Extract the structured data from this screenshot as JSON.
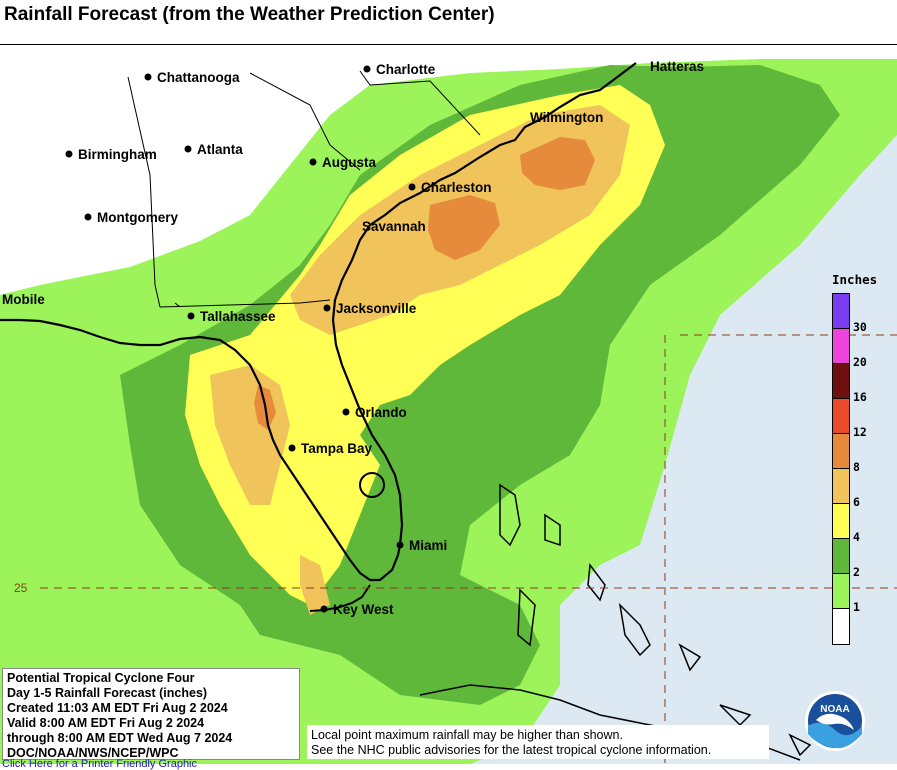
{
  "page": {
    "title": "Rainfall Forecast (from the Weather Prediction Center)"
  },
  "map": {
    "cities": [
      {
        "name": "Chattanooga"
      },
      {
        "name": "Charlotte"
      },
      {
        "name": "Hatteras"
      },
      {
        "name": "Birmingham"
      },
      {
        "name": "Atlanta"
      },
      {
        "name": "Augusta"
      },
      {
        "name": "Wilmington"
      },
      {
        "name": "Charleston"
      },
      {
        "name": "Montgomery"
      },
      {
        "name": "Savannah"
      },
      {
        "name": "Mobile"
      },
      {
        "name": "Tallahassee"
      },
      {
        "name": "Jacksonville"
      },
      {
        "name": "Orlando"
      },
      {
        "name": "Tampa Bay"
      },
      {
        "name": "Miami"
      },
      {
        "name": "Key West"
      }
    ],
    "latitude_label": "25",
    "colors": {
      "ocean": "#dce8f2",
      "land": "#ffffff",
      "band_1": "#9cf45a",
      "band_2": "#5fb83a",
      "band_4": "#ffff55",
      "band_6": "#f0c45a",
      "band_8": "#e68a3c",
      "band_12": "#e84a2a",
      "band_16": "#6e1010",
      "band_20": "#ee44dd",
      "band_30": "#8844ee",
      "coast": "#000000",
      "border": "#000000"
    }
  },
  "legend": {
    "title": "Inches",
    "ticks": [
      "30",
      "20",
      "16",
      "12",
      "8",
      "6",
      "4",
      "2",
      "1"
    ],
    "swatch_colors": [
      "#7a3cf0",
      "#ee44dd",
      "#6e1010",
      "#e84a2a",
      "#e68a3c",
      "#f0c45a",
      "#ffff55",
      "#5fb83a",
      "#9cf45a",
      "#ffffff"
    ]
  },
  "info": {
    "lines": [
      "Potential Tropical Cyclone Four",
      "Day 1-5 Rainfall Forecast (inches)",
      "Created 11:03 AM EDT Fri Aug 2 2024",
      "Valid 8:00 AM EDT Fri Aug 2 2024",
      "through 8:00 AM EDT Wed Aug 7 2024",
      "DOC/NOAA/NWS/NCEP/WPC"
    ]
  },
  "note": {
    "lines": [
      "Local point maximum rainfall may be higher than shown.",
      "See the NHC public advisories for the latest tropical cyclone information."
    ]
  },
  "logo": {
    "text": "NOAA"
  },
  "link": {
    "text": "Click Here for a Printer Friendly Graphic"
  }
}
